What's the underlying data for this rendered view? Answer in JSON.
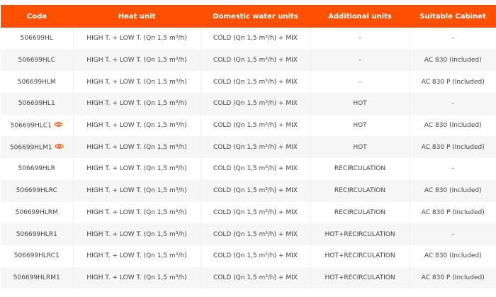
{
  "headers": [
    "Code",
    "Heat unit",
    "Domestic water units",
    "Additional units",
    "Suitable Cabinet"
  ],
  "accent": "#fe5000",
  "rows": [
    {
      "code": "506699HL",
      "heat": "HIGH T. + LOW T. (Qn 1,5 m³/h)",
      "water": "COLD (Qn 1,5 m³/h) + MIX",
      "additional": "-",
      "cabinet": "-",
      "eye": false
    },
    {
      "code": "506699HLC",
      "heat": "HIGH T. + LOW T. (Qn 1,5 m³/h)",
      "water": "COLD (Qn 1,5 m³/h) + MIX",
      "additional": "-",
      "cabinet": "AC 830 (Included)",
      "eye": false
    },
    {
      "code": "506699HLM",
      "heat": "HIGH T. + LOW T. (Qn 1,5 m³/h)",
      "water": "COLD (Qn 1,5 m³/h) + MIX",
      "additional": "-",
      "cabinet": "AC 830 P (Included)",
      "eye": false
    },
    {
      "code": "506699HL1",
      "heat": "HIGH T. + LOW T. (Qn 1,5 m³/h)",
      "water": "COLD (Qn 1,5 m³/h) + MIX",
      "additional": "HOT",
      "cabinet": "-",
      "eye": false
    },
    {
      "code": "506699HLC1",
      "heat": "HIGH T. + LOW T. (Qn 1,5 m³/h)",
      "water": "COLD (Qn 1,5 m³/h) + MIX",
      "additional": "HOT",
      "cabinet": "AC 830 (Included)",
      "eye": true
    },
    {
      "code": "506699HLM1",
      "heat": "HIGH T. + LOW T. (Qn 1,5 m³/h)",
      "water": "COLD (Qn 1,5 m³/h) + MIX",
      "additional": "HOT",
      "cabinet": "AC 830 P (Included)",
      "eye": true
    },
    {
      "code": "506699HLR",
      "heat": "HIGH T. + LOW T. (Qn 1,5 m³/h)",
      "water": "COLD (Qn 1,5 m³/h) + MIX",
      "additional": "RECIRCULATION",
      "cabinet": "-",
      "eye": false
    },
    {
      "code": "506699HLRC",
      "heat": "HIGH T. + LOW T. (Qn 1,5 m³/h)",
      "water": "COLD (Qn 1,5 m³/h) + MIX",
      "additional": "RECIRCULATION",
      "cabinet": "AC 830 (Included)",
      "eye": false
    },
    {
      "code": "506699HLRM",
      "heat": "HIGH T. + LOW T. (Qn 1,5 m³/h)",
      "water": "COLD (Qn 1,5 m³/h) + MIX",
      "additional": "RECIRCULATION",
      "cabinet": "AC 830 P (Included)",
      "eye": false
    },
    {
      "code": "506699HLR1",
      "heat": "HIGH T. + LOW T. (Qn 1,5 m³/h)",
      "water": "COLD (Qn 1,5 m³/h) + MIX",
      "additional": "HOT+RECIRCULATION",
      "cabinet": "-",
      "eye": false
    },
    {
      "code": "506699HLRC1",
      "heat": "HIGH T. + LOW T. (Qn 1,5 m³/h)",
      "water": "COLD (Qn 1,5 m³/h) + MIX",
      "additional": "HOT+RECIRCULATION",
      "cabinet": "AC 830 (Included)",
      "eye": false
    },
    {
      "code": "506699HLRM1",
      "heat": "HIGH T. + LOW T. (Qn 1,5 m³/h)",
      "water": "COLD (Qn 1,5 m³/h) + MIX",
      "additional": "HOT+RECIRCULATION",
      "cabinet": "AC 830 P (Included)",
      "eye": false
    }
  ]
}
